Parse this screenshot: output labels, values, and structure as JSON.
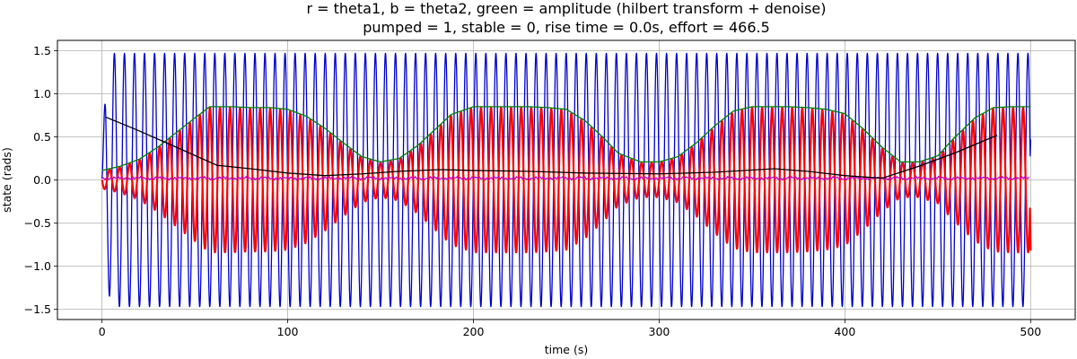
{
  "chart_data": {
    "type": "line",
    "title_line1": "r = theta1, b = theta2, green = amplitude (hilbert transform + denoise)",
    "title_line2": "pumped = 1, stable = 0, rise time = 0.0s, effort = 466.5",
    "xlabel": "time (s)",
    "ylabel": "state (rads)",
    "xlim": [
      -24,
      524
    ],
    "ylim": [
      -1.62,
      1.62
    ],
    "xticks": [
      0,
      100,
      200,
      300,
      400,
      500
    ],
    "yticks": [
      1.5,
      1.0,
      0.5,
      0.0,
      -0.5,
      -1.0,
      -1.5
    ],
    "ytick_labels": [
      "1.5",
      "1.0",
      "0.5",
      "0.0",
      "−0.5",
      "−1.0",
      "−1.5"
    ],
    "grid": true,
    "colors": {
      "theta1": "#ff0000",
      "theta2": "#0000cc",
      "amplitude": "#008000",
      "black_line": "#000000",
      "magenta_line": "#bf00bf",
      "grid": "#b0b0b0"
    },
    "series": [
      {
        "key": "theta2",
        "t_start": 0,
        "t_end": 500,
        "envelope": {
          "x": [
            0,
            2,
            4,
            6,
            500
          ],
          "y": [
            0.15,
            1.15,
            1.35,
            1.47,
            1.47
          ]
        },
        "frequency_hz": 0.185,
        "end_value": 0.47
      },
      {
        "key": "theta1",
        "t_start": 0,
        "t_end": 500,
        "frequency_hz": 0.185,
        "end_value": -0.82
      },
      {
        "key": "amplitude",
        "x": [
          0,
          10,
          20,
          30,
          40,
          50,
          58,
          70,
          80,
          90,
          100,
          110,
          120,
          130,
          140,
          150,
          160,
          170,
          180,
          188,
          200,
          210,
          220,
          230,
          240,
          250,
          260,
          270,
          278,
          290,
          300,
          310,
          320,
          330,
          340,
          350,
          360,
          370,
          380,
          390,
          400,
          410,
          420,
          430,
          440,
          450,
          458,
          470,
          480,
          490,
          500
        ],
        "y": [
          0.11,
          0.16,
          0.24,
          0.38,
          0.55,
          0.72,
          0.85,
          0.85,
          0.84,
          0.84,
          0.82,
          0.74,
          0.6,
          0.43,
          0.27,
          0.21,
          0.25,
          0.4,
          0.6,
          0.76,
          0.85,
          0.85,
          0.85,
          0.85,
          0.84,
          0.82,
          0.69,
          0.49,
          0.31,
          0.21,
          0.21,
          0.27,
          0.43,
          0.63,
          0.8,
          0.85,
          0.85,
          0.85,
          0.84,
          0.82,
          0.77,
          0.59,
          0.38,
          0.21,
          0.21,
          0.28,
          0.47,
          0.72,
          0.84,
          0.85,
          0.85
        ]
      },
      {
        "key": "black_line",
        "x": [
          2,
          20,
          40,
          62,
          80,
          100,
          120,
          140,
          160,
          182,
          200,
          230,
          260,
          300,
          330,
          362,
          380,
          400,
          420,
          440,
          460,
          482
        ],
        "y": [
          0.73,
          0.57,
          0.38,
          0.17,
          0.13,
          0.08,
          0.05,
          0.07,
          0.1,
          0.12,
          0.11,
          0.1,
          0.08,
          0.07,
          0.09,
          0.13,
          0.1,
          0.05,
          0.02,
          0.16,
          0.32,
          0.52
        ]
      },
      {
        "key": "magenta_line",
        "x": [
          0,
          500
        ],
        "y": [
          0.02,
          0.02
        ]
      }
    ]
  }
}
